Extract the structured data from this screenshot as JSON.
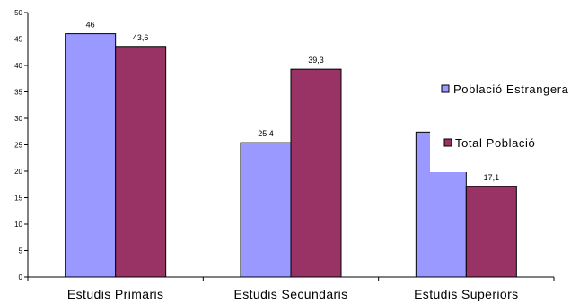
{
  "chart_data": {
    "type": "bar",
    "categories": [
      "Estudis Primaris",
      "Estudis Secundaris",
      "Estudis Superiors"
    ],
    "series": [
      {
        "name": "Població Estrangera",
        "values": [
          46,
          25.4,
          27.4
        ],
        "labels": [
          "46",
          "25,4",
          ""
        ],
        "color": "#9999ff"
      },
      {
        "name": "Total Població",
        "values": [
          43.6,
          39.3,
          17.1
        ],
        "labels": [
          "43,6",
          "39,3",
          "17,1"
        ],
        "color": "#993366"
      }
    ],
    "ylim": [
      0,
      50
    ],
    "yticks": [
      0,
      5,
      10,
      15,
      20,
      25,
      30,
      35,
      40,
      45,
      50
    ],
    "legend_position": "right",
    "grid": false
  }
}
